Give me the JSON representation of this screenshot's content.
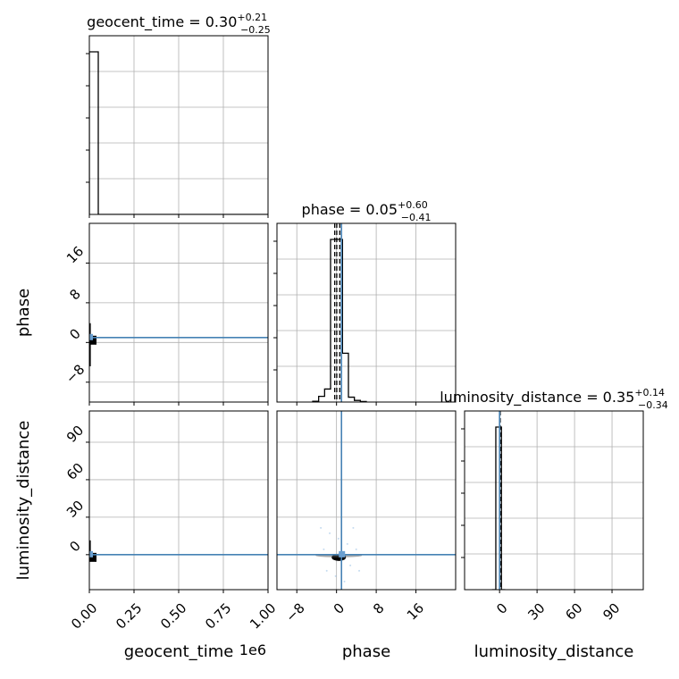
{
  "chart_data": {
    "type": "corner",
    "parameters": [
      "geocent_time",
      "phase",
      "luminosity_distance"
    ],
    "truth_color": "#4682b4",
    "titles": [
      {
        "text": "geocent_time = 0.30",
        "sup": "+0.21",
        "sub": "−0.25"
      },
      {
        "text": "phase = 0.05",
        "sup": "+0.60",
        "sub": "−0.41"
      },
      {
        "text": "luminosity_distance = 0.35",
        "sup": "+0.14",
        "sub": "−0.34"
      }
    ],
    "axes": {
      "geocent_time": {
        "range": [
          0,
          1000000
        ],
        "ticks": [
          0,
          250000,
          500000,
          750000,
          1000000
        ],
        "tick_labels": [
          "0.00",
          "0.25",
          "0.50",
          "0.75",
          "1.00"
        ],
        "offset_label": "1e6",
        "label": "geocent_time"
      },
      "phase": {
        "range": [
          -12,
          24
        ],
        "ticks": [
          -8,
          0,
          8,
          16
        ],
        "tick_labels": [
          "−8",
          "0",
          "8",
          "16"
        ],
        "label": "phase"
      },
      "luminosity_distance": {
        "range": [
          -28,
          115
        ],
        "ticks": [
          0,
          30,
          60,
          90
        ],
        "tick_labels": [
          "0",
          "30",
          "60",
          "90"
        ],
        "label": "luminosity_distance"
      }
    },
    "truths": {
      "geocent_time": 0,
      "phase": 1,
      "luminosity_distance": 0
    },
    "quantiles": {
      "phase": [
        -0.36,
        0.05,
        0.65
      ],
      "luminosity_distance": [
        0.01,
        0.35,
        0.49
      ]
    },
    "histograms": {
      "geocent_time": {
        "edges": [
          0,
          50000,
          1000000
        ],
        "heights": [
          1.0,
          0.0
        ]
      },
      "phase": {
        "edges": [
          -4.8,
          -3.6,
          -2.4,
          -1.2,
          0,
          1.2,
          2.4,
          3.6,
          4.8,
          6.0
        ],
        "heights": [
          0.005,
          0.035,
          0.08,
          1.0,
          1.0,
          0.3,
          0.03,
          0.01,
          0.003
        ]
      },
      "luminosity_distance": {
        "edges": [
          -6,
          -4.5,
          -3,
          -1.5,
          0,
          1.5,
          3,
          4.5
        ],
        "heights": [
          0.0,
          0.0,
          1.0,
          1.0,
          1.0,
          0.0,
          0.0
        ]
      }
    },
    "grid": true
  }
}
